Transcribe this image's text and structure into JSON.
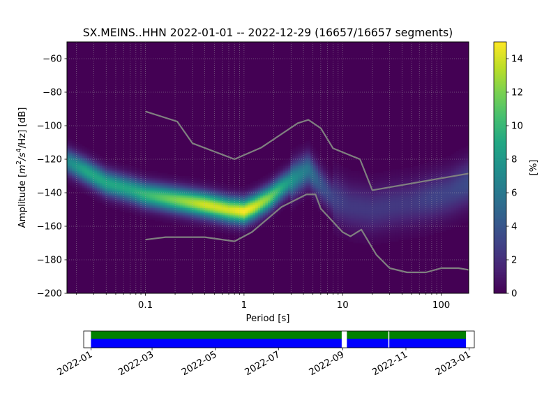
{
  "chart_data": {
    "type": "heatmap",
    "title": "SX.MEINS..HHN   2022-01-01 -- 2022-12-29  (16657/16657 segments)",
    "xlabel": "Period [s]",
    "ylabel": "Amplitude [m²/s⁴/Hz] [dB]",
    "ylabel_parts": {
      "prefix": "Amplitude [",
      "m": "m",
      "e2": "2",
      "mid": "/s",
      "e4": "4",
      "suffix": "/Hz] [dB]"
    },
    "x_scale": "log",
    "xlim": [
      0.016,
      190
    ],
    "ylim": [
      -200,
      -50
    ],
    "x_ticks": [
      0.1,
      1,
      10,
      100
    ],
    "x_tick_labels": [
      "0.1",
      "1",
      "10",
      "100"
    ],
    "y_ticks": [
      -200,
      -180,
      -160,
      -140,
      -120,
      -100,
      -80,
      -60
    ],
    "y_tick_labels": [
      "−200",
      "−180",
      "−160",
      "−140",
      "−120",
      "−100",
      "−80",
      "−60"
    ],
    "grid": true,
    "colormap": "viridis",
    "colorbar": {
      "label": "[%]",
      "range": [
        0,
        15
      ],
      "ticks": [
        0,
        2,
        4,
        6,
        8,
        10,
        12,
        14
      ],
      "tick_labels": [
        "0",
        "2",
        "4",
        "6",
        "8",
        "10",
        "12",
        "14"
      ]
    },
    "mode_curve": {
      "x": [
        0.016,
        0.025,
        0.04,
        0.07,
        0.1,
        0.2,
        0.4,
        0.7,
        1.0,
        1.3,
        1.8,
        2.5,
        3.5,
        4.5,
        6,
        8,
        12,
        20,
        30,
        50,
        80,
        120,
        190
      ],
      "y": [
        -121,
        -127,
        -134,
        -138,
        -141,
        -144,
        -147,
        -150,
        -151,
        -148,
        -143,
        -136,
        -130,
        -126,
        -135,
        -143,
        -148,
        -150,
        -148,
        -146,
        -143,
        -140,
        -134
      ],
      "peak_percent": [
        7,
        9,
        9,
        9,
        10,
        12,
        14,
        14,
        15,
        14,
        12,
        9,
        7,
        6,
        4,
        3,
        2.5,
        2.5,
        2.5,
        2.5,
        3,
        3,
        3.5
      ]
    },
    "series": [
      {
        "name": "",
        "color": "#808080",
        "x": [
          0.1,
          0.21,
          0.3,
          0.8,
          1.5,
          3.5,
          4.5,
          6,
          8,
          15,
          20,
          190
        ],
        "y": [
          -91.5,
          -97.5,
          -110.5,
          -120,
          -113,
          -98.5,
          -96.5,
          -101.5,
          -113.5,
          -120,
          -138.5,
          -128.5
        ]
      },
      {
        "name": "",
        "color": "#808080",
        "x": [
          0.1,
          0.16,
          0.4,
          0.8,
          1.2,
          2.4,
          4.3,
          5.3,
          6,
          10,
          12,
          15.5,
          22,
          30,
          45,
          70,
          100,
          150,
          190
        ],
        "y": [
          -168,
          -166.5,
          -166.5,
          -169,
          -163.5,
          -148.5,
          -141,
          -141,
          -149.5,
          -163.5,
          -166,
          -162,
          -177,
          -185,
          -187.5,
          -187.5,
          -185,
          -185,
          -186
        ]
      }
    ]
  },
  "timeline": {
    "date_ticks": [
      "2022-01",
      "2022-03",
      "2022-05",
      "2022-07",
      "2022-09",
      "2022-11",
      "2023-01"
    ],
    "date_range": [
      "2021-12-25",
      "2023-01-06"
    ],
    "green_color": "#008000",
    "blue_color": "#0000ff",
    "data_segments": [
      {
        "start": "2022-01-01",
        "end": "2022-08-31"
      },
      {
        "start": "2022-09-05",
        "end": "2022-10-15"
      },
      {
        "start": "2022-10-16",
        "end": "2022-12-29"
      }
    ]
  }
}
